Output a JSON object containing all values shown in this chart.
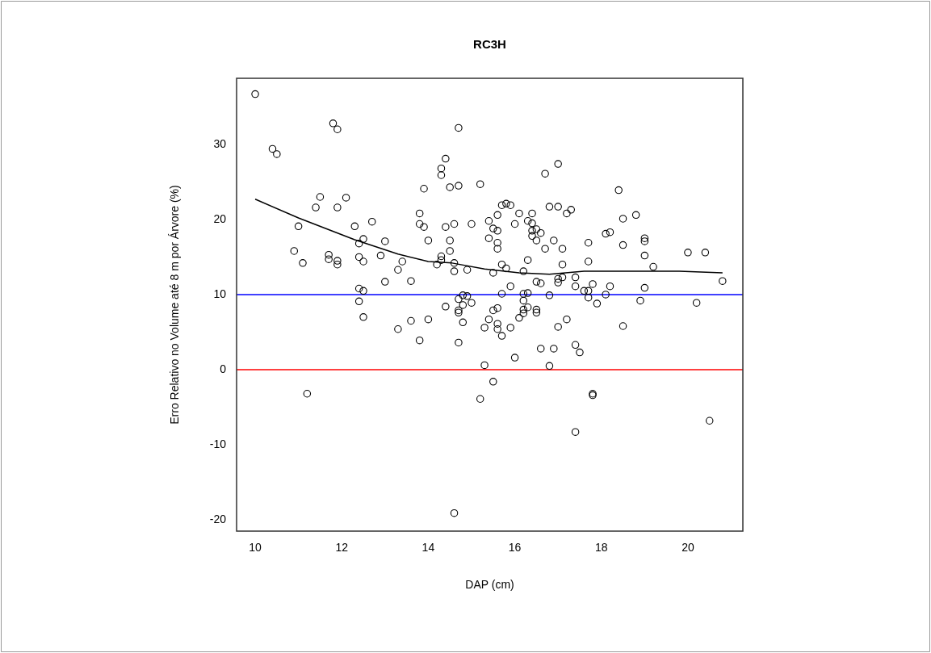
{
  "chart_data": {
    "type": "scatter",
    "title": "RC3H",
    "xlabel": "DAP (cm)",
    "ylabel": "Erro Relativo no Volume até 8 m por Árvore (%)",
    "xlim": [
      9.57,
      21.27
    ],
    "xticks": [
      10,
      12,
      14,
      16,
      18,
      20
    ],
    "ylim": [
      -21.5,
      38.8
    ],
    "yticks": [
      -20,
      -10,
      0,
      10,
      20,
      30
    ],
    "grid": false,
    "legend": false,
    "marker": "circle",
    "series": [
      {
        "color": "#000000",
        "x": [
          10.0,
          10.4,
          10.5,
          11.8,
          11.9,
          14.7,
          14.4,
          14.3,
          14.3,
          13.9,
          14.5,
          14.7,
          15.2,
          11.5,
          11.4,
          12.1,
          11.9,
          11.0,
          10.9,
          11.1,
          11.7,
          11.7,
          11.9,
          11.9,
          12.3,
          12.7,
          12.5,
          12.4,
          13.0,
          12.4,
          12.5,
          12.9,
          13.4,
          13.3,
          13.0,
          13.6,
          12.4,
          12.5,
          12.4,
          13.8,
          13.8,
          13.9,
          14.4,
          14.6,
          15.0,
          15.4,
          15.4,
          14.0,
          14.5,
          14.5,
          14.3,
          14.3,
          14.2,
          14.6,
          14.6,
          14.9,
          15.5,
          14.4,
          14.7,
          14.8,
          14.9,
          15.0,
          14.8,
          14.7,
          15.5,
          12.5,
          13.3,
          13.6,
          14.0,
          13.8,
          14.7,
          14.8,
          14.7,
          15.3,
          15.4,
          15.3,
          15.5,
          15.2,
          14.6,
          11.2,
          17.0,
          16.7,
          18.4,
          15.7,
          15.8,
          15.9,
          16.8,
          17.0,
          17.2,
          17.3,
          15.6,
          16.1,
          16.4,
          16.0,
          16.3,
          16.4,
          15.5,
          15.6,
          16.4,
          16.5,
          16.4,
          16.6,
          16.5,
          15.6,
          15.6,
          16.9,
          16.7,
          17.1,
          18.1,
          18.2,
          18.5,
          18.8,
          17.7,
          18.5,
          19.0,
          19.0,
          19.0,
          19.2,
          20.0,
          20.4,
          20.8,
          20.2,
          18.9,
          15.7,
          15.8,
          16.3,
          16.2,
          17.1,
          17.7,
          15.9,
          16.5,
          16.6,
          17.0,
          17.0,
          17.1,
          17.4,
          17.4,
          17.8,
          18.2,
          17.6,
          17.7,
          18.1,
          19.0,
          15.7,
          16.2,
          16.3,
          16.8,
          17.7,
          17.9,
          16.2,
          15.6,
          16.2,
          16.3,
          16.5,
          16.2,
          16.5,
          15.6,
          15.6,
          15.7,
          15.9,
          16.1,
          17.0,
          17.2,
          18.5,
          16.0,
          16.6,
          16.9,
          17.4,
          17.5,
          16.8,
          17.8,
          17.8,
          17.4,
          20.5
        ],
        "values": [
          36.7,
          29.4,
          28.7,
          32.8,
          32.0,
          32.2,
          28.1,
          26.8,
          25.9,
          24.1,
          24.3,
          24.5,
          24.7,
          23.0,
          21.6,
          22.9,
          21.6,
          19.1,
          15.8,
          14.2,
          15.3,
          14.7,
          14.5,
          14.0,
          19.1,
          19.7,
          17.4,
          16.8,
          17.1,
          15.0,
          14.4,
          15.2,
          14.4,
          13.3,
          11.7,
          11.8,
          10.8,
          10.5,
          9.1,
          20.8,
          19.4,
          19.0,
          19.0,
          19.4,
          19.4,
          19.8,
          17.5,
          17.2,
          17.2,
          15.8,
          15.1,
          14.6,
          14.0,
          14.2,
          13.1,
          13.3,
          12.9,
          8.4,
          9.4,
          9.9,
          9.8,
          8.9,
          8.6,
          7.9,
          7.9,
          7.0,
          5.4,
          6.5,
          6.7,
          3.9,
          7.6,
          6.3,
          3.6,
          5.6,
          6.7,
          0.6,
          -1.6,
          -3.9,
          -19.1,
          -3.2,
          27.4,
          26.1,
          23.9,
          21.9,
          22.1,
          21.9,
          21.7,
          21.7,
          20.8,
          21.3,
          20.6,
          20.8,
          20.8,
          19.4,
          19.8,
          19.5,
          18.8,
          18.5,
          18.5,
          18.7,
          17.8,
          18.2,
          17.2,
          16.9,
          16.1,
          17.2,
          16.1,
          16.1,
          18.1,
          18.3,
          20.1,
          20.6,
          16.9,
          16.6,
          17.5,
          17.1,
          15.2,
          13.7,
          15.6,
          15.6,
          11.8,
          8.9,
          9.2,
          14.0,
          13.5,
          14.6,
          13.1,
          14.0,
          14.4,
          11.1,
          11.7,
          11.5,
          12.1,
          11.6,
          12.3,
          12.3,
          11.1,
          11.4,
          11.1,
          10.5,
          10.5,
          10.0,
          10.9,
          10.1,
          10.1,
          10.2,
          9.9,
          9.6,
          8.8,
          9.2,
          8.2,
          8.0,
          8.3,
          8.0,
          7.5,
          7.6,
          6.1,
          5.4,
          4.5,
          5.6,
          6.9,
          5.7,
          6.7,
          5.8,
          1.6,
          2.8,
          2.8,
          3.3,
          2.3,
          0.5,
          -3.2,
          -3.4,
          -8.3,
          -6.8
        ]
      },
      {
        "type": "line",
        "color": "#000000",
        "marker": "none",
        "x": [
          10.0,
          11.0,
          12.3,
          13.3,
          14.0,
          14.55,
          15.3,
          16.1,
          16.8,
          17.6,
          19.8,
          20.8
        ],
        "values": [
          22.7,
          20.2,
          17.3,
          15.4,
          14.4,
          14.2,
          13.4,
          12.9,
          12.7,
          13.1,
          13.1,
          12.9
        ]
      }
    ],
    "ref_lines": [
      {
        "axis": "y",
        "value": 10,
        "color": "#0000ff"
      },
      {
        "axis": "y",
        "value": 0,
        "color": "#ff0000"
      }
    ]
  }
}
